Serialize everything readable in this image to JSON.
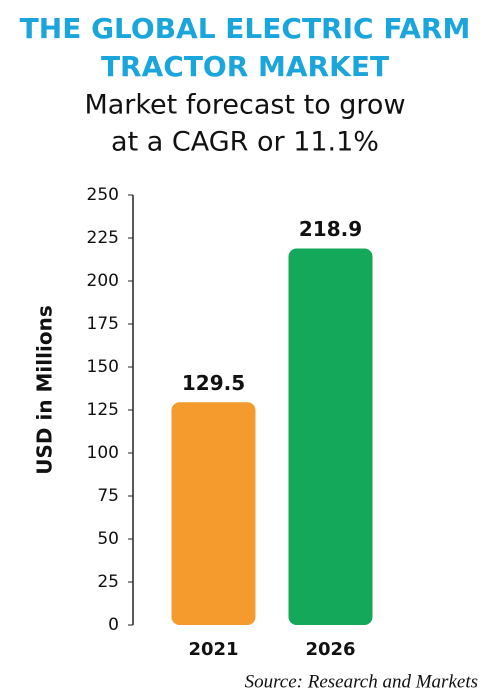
{
  "chart_data": {
    "type": "bar",
    "title": [
      "THE GLOBAL ELECTRIC FARM",
      "TRACTOR MARKET"
    ],
    "subtitle": [
      "Market forecast to grow",
      "at a CAGR or 11.1%"
    ],
    "ylabel": "USD in Millions",
    "categories": [
      "2021",
      "2026"
    ],
    "values": [
      129.5,
      218.9
    ],
    "colors": [
      "#f59a2c",
      "#14a85a"
    ],
    "ylim": [
      0,
      250
    ],
    "yticks": [
      0,
      25,
      50,
      75,
      100,
      125,
      150,
      175,
      200,
      225,
      250
    ],
    "grid": false,
    "source": "Source: Research and Markets"
  }
}
